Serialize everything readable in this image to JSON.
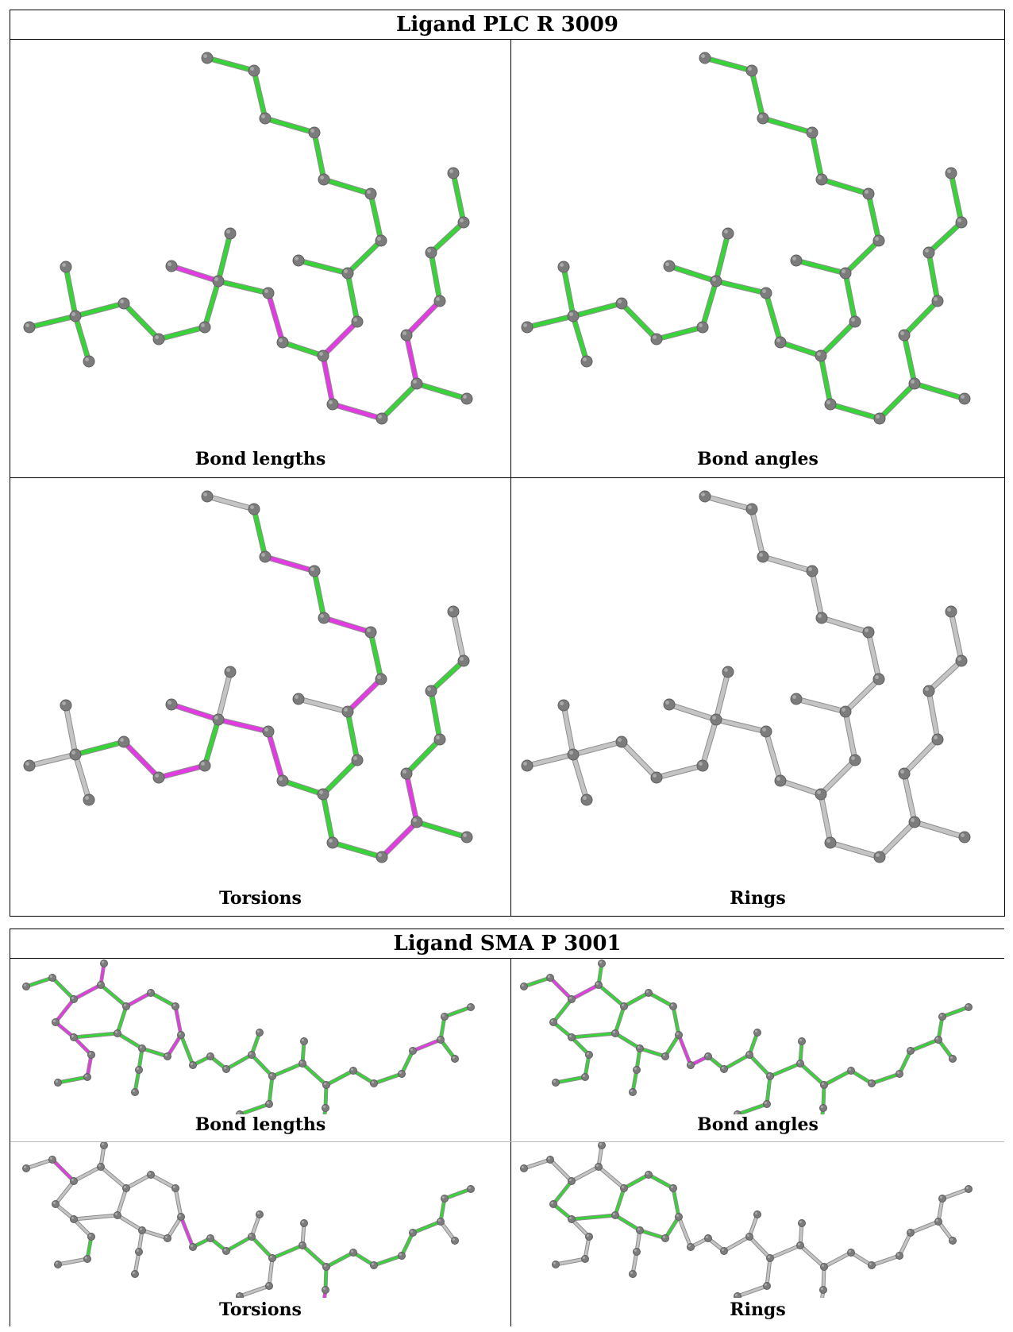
{
  "colors": {
    "ok": "#38d338",
    "outlier": "#e23be2",
    "neutral": "#c4c4c4",
    "atom": "#7c7c7c"
  },
  "ligands": [
    {
      "title": "Ligand PLC R 3009",
      "panels": [
        {
          "caption": "Bond lengths"
        },
        {
          "caption": "Bond angles"
        },
        {
          "caption": "Torsions"
        },
        {
          "caption": "Rings"
        }
      ]
    },
    {
      "title": "Ligand SMA P 3001",
      "panels": [
        {
          "caption": "Bond lengths"
        },
        {
          "caption": "Bond angles"
        },
        {
          "caption": "Torsions"
        },
        {
          "caption": "Rings"
        }
      ]
    }
  ]
}
